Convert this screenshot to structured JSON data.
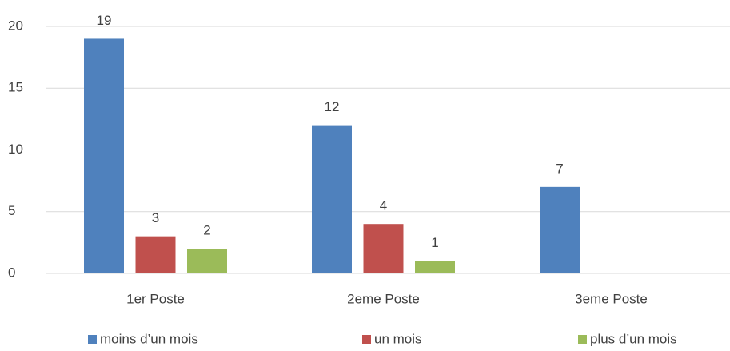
{
  "chart_data": {
    "type": "bar",
    "categories": [
      "1er Poste",
      "2eme Poste",
      "3eme Poste"
    ],
    "series": [
      {
        "name": "moins d’un mois",
        "color": "#4f81bd",
        "values": [
          19,
          12,
          7
        ]
      },
      {
        "name": "un mois",
        "color": "#c0504d",
        "values": [
          3,
          4,
          null
        ]
      },
      {
        "name": "plus d’un mois",
        "color": "#9bbb59",
        "values": [
          2,
          1,
          null
        ]
      }
    ],
    "ylim": [
      0,
      20
    ],
    "yticks": [
      0,
      5,
      10,
      15,
      20
    ],
    "grid": true,
    "legend": "bottom"
  }
}
